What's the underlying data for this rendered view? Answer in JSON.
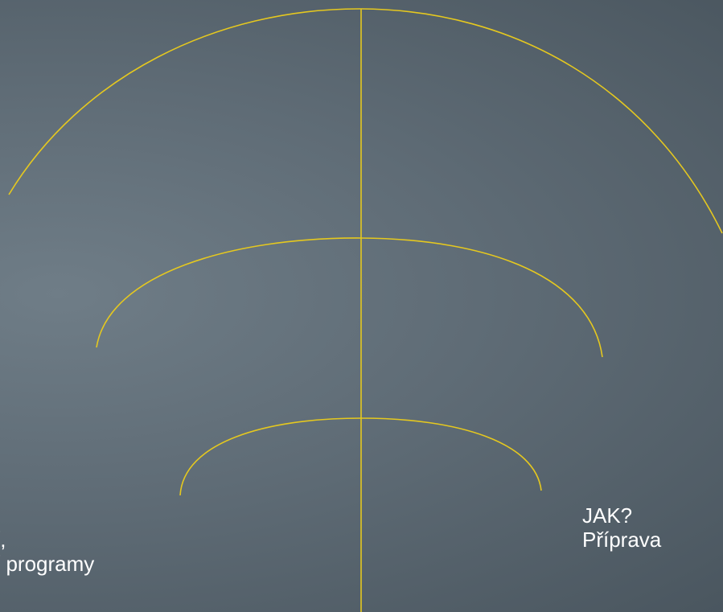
{
  "colors": {
    "line": "#e5c81f",
    "text": "#ffffff",
    "background": "#5f6c76"
  },
  "labels": {
    "left": {
      "line1": "í,",
      "line2": "í programy"
    },
    "right": {
      "line1": "JAK?",
      "line2": "Příprava"
    }
  }
}
